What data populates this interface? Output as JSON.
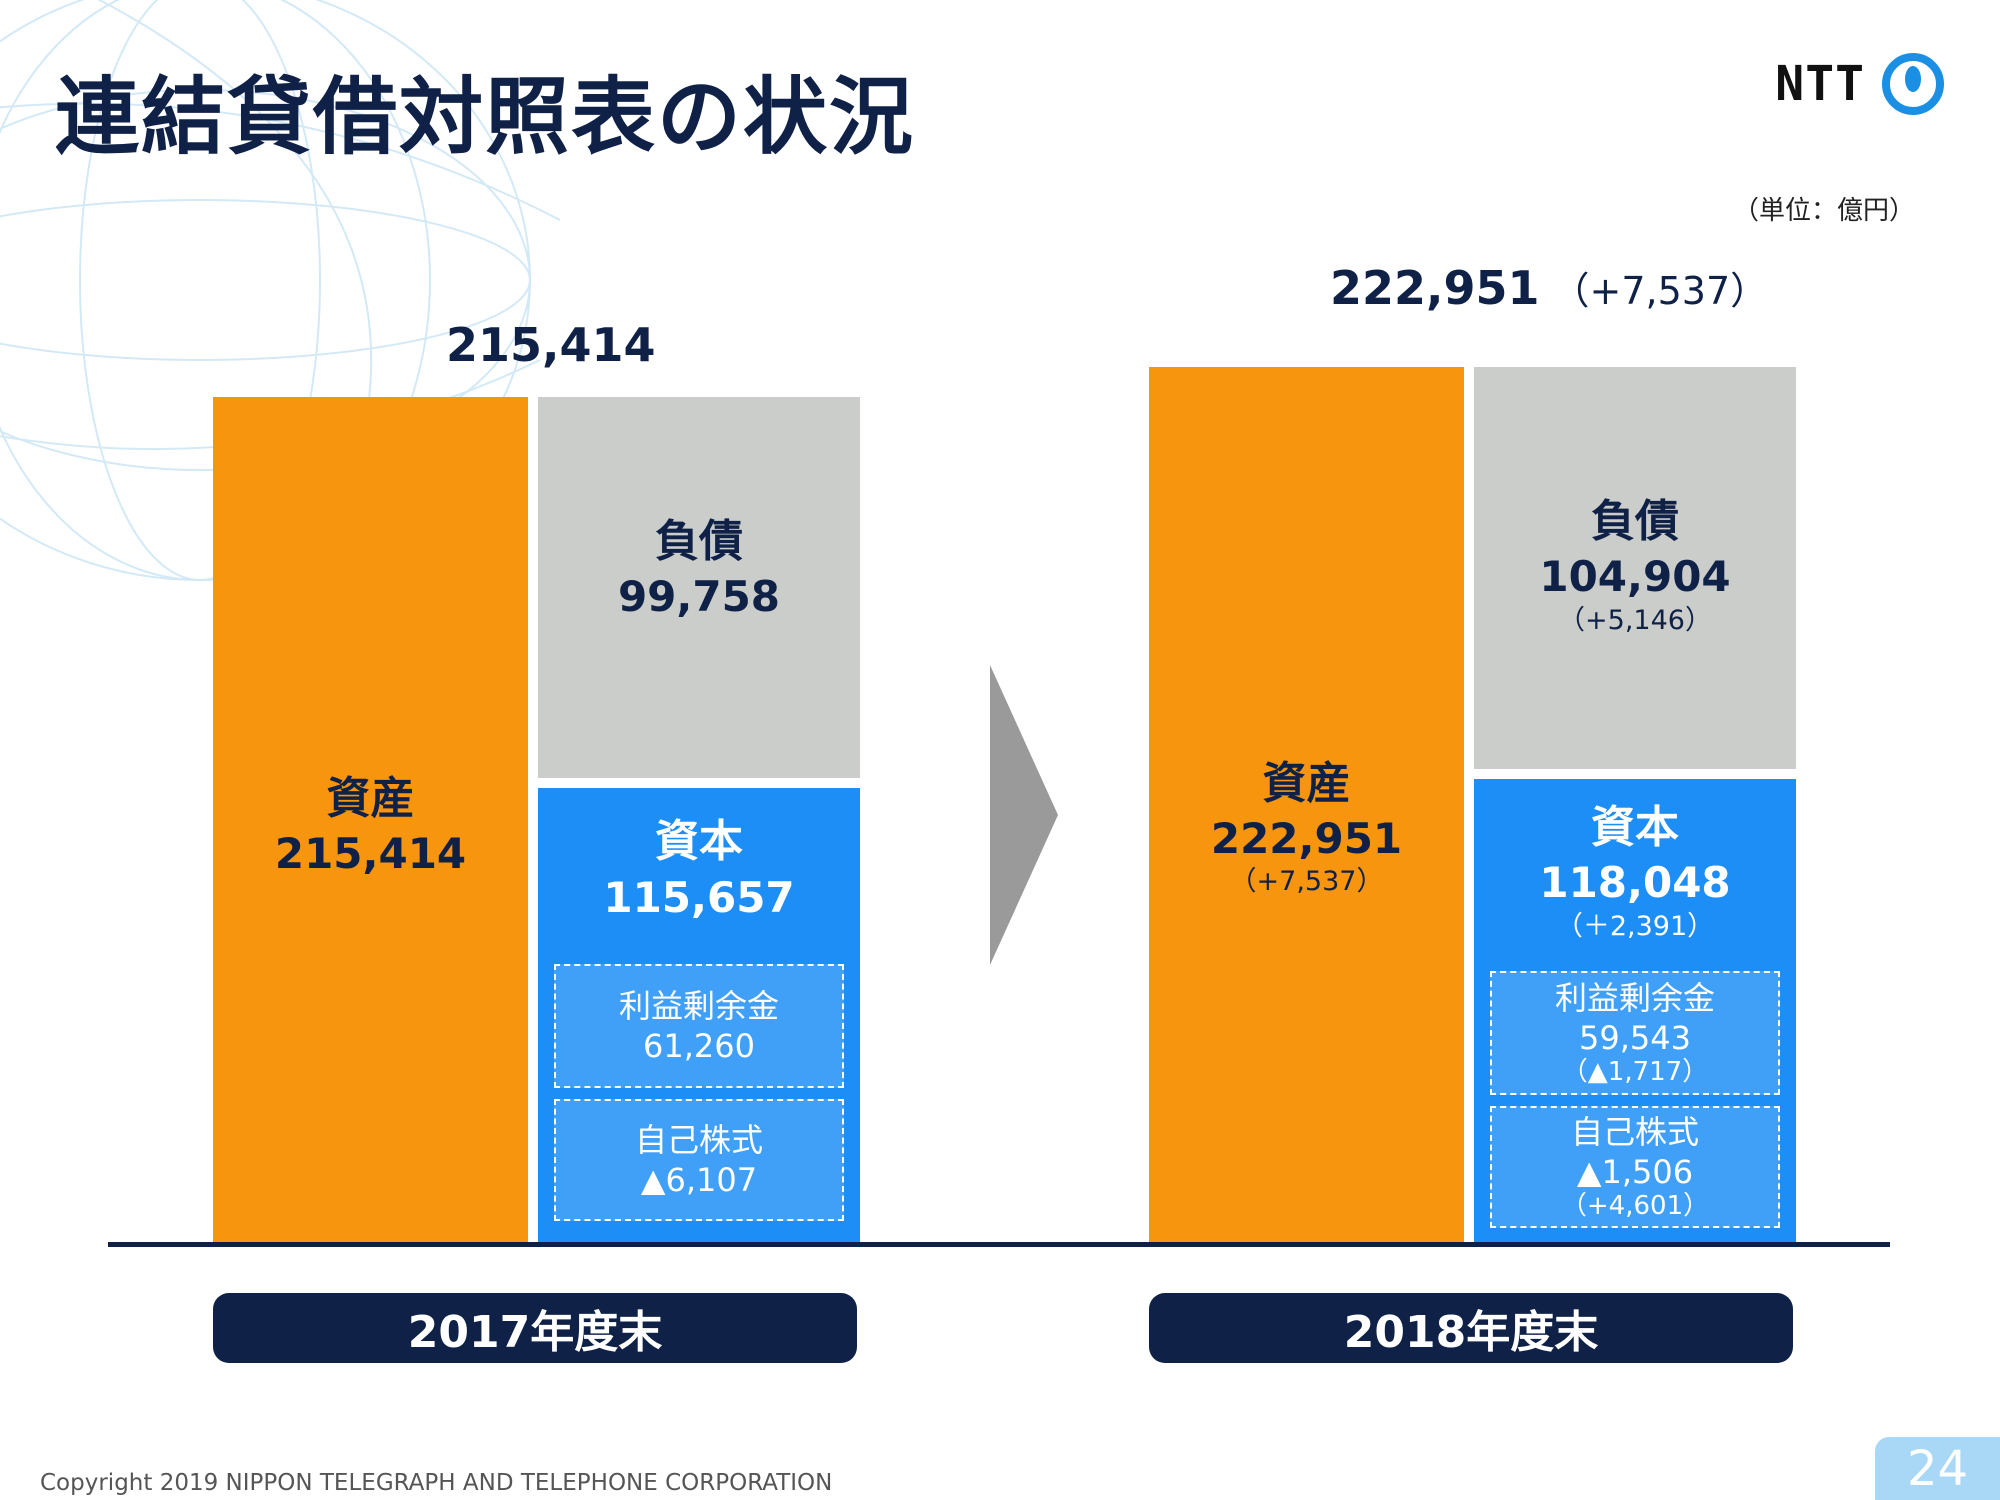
{
  "title": "連結貸借対照表の状況",
  "logo": {
    "text": "NTT",
    "icon": "ntt-ring-logo"
  },
  "unit_label": "（単位：億円）",
  "colors": {
    "assets": "#f7950f",
    "liabilities": "#cbcdca",
    "equity": "#1c8ef6",
    "navy": "#0f2147"
  },
  "chart_data": {
    "type": "bar",
    "stacked": true,
    "categories": [
      "2017年度末",
      "2018年度末"
    ],
    "totals": [
      {
        "value": "215,414",
        "change": ""
      },
      {
        "value": "222,951",
        "change": "（+7,537）"
      }
    ],
    "series": [
      {
        "name": "資産",
        "values": [
          215414,
          222951
        ],
        "labels": [
          "215,414",
          "222,951"
        ],
        "changes": [
          "",
          "（+7,537）"
        ]
      },
      {
        "name": "負債",
        "values": [
          99758,
          104904
        ],
        "labels": [
          "99,758",
          "104,904"
        ],
        "changes": [
          "",
          "（+5,146）"
        ]
      },
      {
        "name": "資本",
        "values": [
          115657,
          118048
        ],
        "labels": [
          "115,657",
          "118,048"
        ],
        "changes": [
          "",
          "（＋2,391）"
        ]
      }
    ],
    "equity_breakdown": [
      {
        "name": "利益剰余金",
        "labels": [
          "61,260",
          "59,543"
        ],
        "changes": [
          "",
          "（▲1,717）"
        ]
      },
      {
        "name": "自己株式",
        "labels": [
          "▲6,107",
          "▲1,506"
        ],
        "changes": [
          "",
          "（+4,601）"
        ]
      }
    ]
  },
  "footer": {
    "copyright": "Copyright 2019 NIPPON TELEGRAPH AND TELEPHONE CORPORATION",
    "page": "24"
  }
}
